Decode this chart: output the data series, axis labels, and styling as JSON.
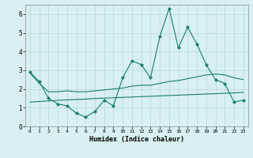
{
  "x": [
    0,
    1,
    2,
    3,
    4,
    5,
    6,
    7,
    8,
    9,
    10,
    11,
    12,
    13,
    14,
    15,
    16,
    17,
    18,
    19,
    20,
    21,
    22,
    23
  ],
  "line1": [
    2.9,
    2.4,
    1.5,
    1.2,
    1.1,
    0.7,
    0.5,
    0.8,
    1.4,
    1.1,
    2.6,
    3.5,
    3.3,
    2.6,
    4.8,
    6.3,
    4.2,
    5.3,
    4.4,
    3.3,
    2.5,
    2.3,
    1.3,
    1.4
  ],
  "line2": [
    2.85,
    2.3,
    1.85,
    1.85,
    1.9,
    1.85,
    1.85,
    1.9,
    1.95,
    2.0,
    2.05,
    2.15,
    2.2,
    2.2,
    2.3,
    2.4,
    2.45,
    2.55,
    2.65,
    2.75,
    2.8,
    2.75,
    2.6,
    2.5
  ],
  "line3": [
    1.3,
    1.33,
    1.36,
    1.39,
    1.42,
    1.44,
    1.46,
    1.49,
    1.51,
    1.53,
    1.55,
    1.57,
    1.59,
    1.61,
    1.63,
    1.65,
    1.67,
    1.69,
    1.71,
    1.73,
    1.75,
    1.77,
    1.79,
    1.81
  ],
  "line_color": "#1a7d6e",
  "bg_color": "#d8f0f0",
  "grid_color": "#b8d8d8",
  "xlabel": "Humidex (Indice chaleur)",
  "ylim": [
    0,
    6.5
  ],
  "xlim": [
    -0.5,
    23.5
  ],
  "yticks": [
    0,
    1,
    2,
    3,
    4,
    5,
    6
  ],
  "xticks": [
    0,
    1,
    2,
    3,
    4,
    5,
    6,
    7,
    8,
    9,
    10,
    11,
    12,
    13,
    14,
    15,
    16,
    17,
    18,
    19,
    20,
    21,
    22,
    23
  ]
}
